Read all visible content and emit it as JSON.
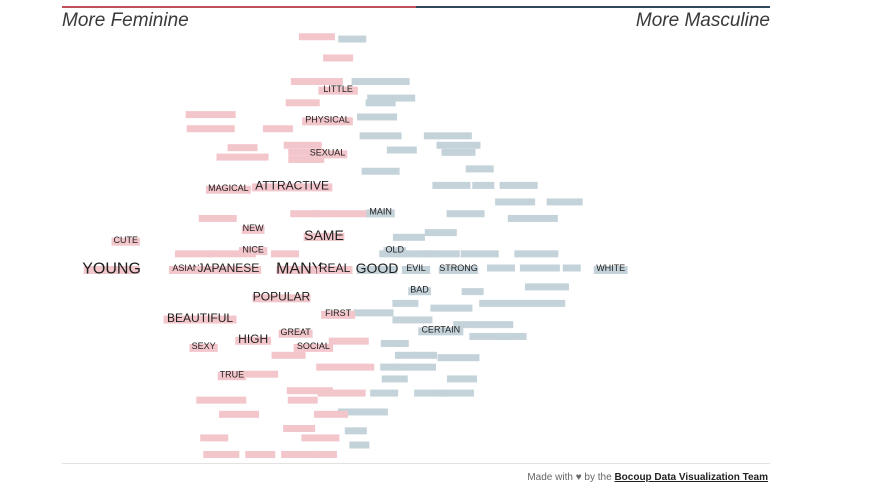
{
  "header": {
    "left_title": "More Feminine",
    "right_title": "More Masculine"
  },
  "footer": {
    "made_with": "Made with ♥ by the",
    "team": "Bocoup Data Visualization Team"
  },
  "colors": {
    "feminine": "#f2c6cb",
    "masculine": "#c4d3da",
    "accent_feminine": "#c0505a",
    "accent_masculine": "#2e4a5a",
    "text": "#1e1e1e"
  },
  "chart_data": {
    "type": "scatter",
    "description_axis_left": "More Feminine",
    "description_axis_right": "More Masculine",
    "labeled_words": [
      {
        "word": "YOUNG",
        "x": -0.86,
        "y": 0.0,
        "group": "feminine",
        "size": "xl"
      },
      {
        "word": "CUTE",
        "x": -0.82,
        "y": 0.12,
        "group": "feminine",
        "size": "s"
      },
      {
        "word": "ASIAN",
        "x": -0.65,
        "y": 0.0,
        "group": "feminine",
        "size": "s"
      },
      {
        "word": "JAPANESE",
        "x": -0.53,
        "y": 0.0,
        "group": "feminine",
        "size": "m"
      },
      {
        "word": "NICE",
        "x": -0.46,
        "y": 0.08,
        "group": "feminine",
        "size": "s"
      },
      {
        "word": "NEW",
        "x": -0.46,
        "y": 0.17,
        "group": "feminine",
        "size": "s"
      },
      {
        "word": "MAGICAL",
        "x": -0.53,
        "y": 0.34,
        "group": "feminine",
        "size": "s"
      },
      {
        "word": "ATTRACTIVE",
        "x": -0.35,
        "y": 0.35,
        "group": "feminine",
        "size": "m"
      },
      {
        "word": "SEXUAL",
        "x": -0.25,
        "y": 0.49,
        "group": "feminine",
        "size": "s"
      },
      {
        "word": "PHYSICAL",
        "x": -0.25,
        "y": 0.63,
        "group": "feminine",
        "size": "s"
      },
      {
        "word": "LITTLE",
        "x": -0.22,
        "y": 0.76,
        "group": "feminine",
        "size": "s"
      },
      {
        "word": "SAME",
        "x": -0.26,
        "y": 0.14,
        "group": "feminine",
        "size": "l"
      },
      {
        "word": "MANY",
        "x": -0.33,
        "y": 0.0,
        "group": "feminine",
        "size": "xl"
      },
      {
        "word": "REAL",
        "x": -0.23,
        "y": 0.0,
        "group": "feminine",
        "size": "m"
      },
      {
        "word": "POPULAR",
        "x": -0.38,
        "y": -0.12,
        "group": "feminine",
        "size": "m"
      },
      {
        "word": "FIRST",
        "x": -0.22,
        "y": -0.19,
        "group": "feminine",
        "size": "s"
      },
      {
        "word": "BEAUTIFUL",
        "x": -0.61,
        "y": -0.21,
        "group": "feminine",
        "size": "m"
      },
      {
        "word": "GREAT",
        "x": -0.34,
        "y": -0.27,
        "group": "feminine",
        "size": "s"
      },
      {
        "word": "HIGH",
        "x": -0.46,
        "y": -0.3,
        "group": "feminine",
        "size": "m"
      },
      {
        "word": "SEXY",
        "x": -0.6,
        "y": -0.33,
        "group": "feminine",
        "size": "s"
      },
      {
        "word": "SOCIAL",
        "x": -0.29,
        "y": -0.33,
        "group": "feminine",
        "size": "s"
      },
      {
        "word": "TRUE",
        "x": -0.52,
        "y": -0.45,
        "group": "feminine",
        "size": "s"
      },
      {
        "word": "GOOD",
        "x": -0.11,
        "y": 0.0,
        "group": "masculine",
        "size": "l"
      },
      {
        "word": "MAIN",
        "x": -0.1,
        "y": 0.24,
        "group": "masculine",
        "size": "s"
      },
      {
        "word": "OLD",
        "x": -0.06,
        "y": 0.08,
        "group": "masculine",
        "size": "s"
      },
      {
        "word": "EVIL",
        "x": 0.0,
        "y": 0.0,
        "group": "masculine",
        "size": "s"
      },
      {
        "word": "STRONG",
        "x": 0.12,
        "y": 0.0,
        "group": "masculine",
        "size": "s"
      },
      {
        "word": "BAD",
        "x": 0.01,
        "y": -0.09,
        "group": "masculine",
        "size": "s"
      },
      {
        "word": "CERTAIN",
        "x": 0.07,
        "y": -0.26,
        "group": "masculine",
        "size": "s"
      },
      {
        "word": "WHITE",
        "x": 0.55,
        "y": 0.0,
        "group": "masculine",
        "size": "s"
      }
    ],
    "unlabeled_words": [
      {
        "x": -0.28,
        "y": 0.98,
        "w": 36,
        "group": "feminine"
      },
      {
        "x": -0.18,
        "y": 0.97,
        "w": 28,
        "group": "masculine"
      },
      {
        "x": -0.22,
        "y": 0.89,
        "w": 30,
        "group": "feminine"
      },
      {
        "x": -0.28,
        "y": 0.79,
        "w": 52,
        "group": "feminine"
      },
      {
        "x": -0.1,
        "y": 0.79,
        "w": 58,
        "group": "masculine"
      },
      {
        "x": -0.07,
        "y": 0.72,
        "w": 48,
        "group": "masculine"
      },
      {
        "x": -0.32,
        "y": 0.7,
        "w": 34,
        "group": "feminine"
      },
      {
        "x": -0.1,
        "y": 0.7,
        "w": 30,
        "group": "masculine"
      },
      {
        "x": -0.58,
        "y": 0.65,
        "w": 50,
        "group": "feminine"
      },
      {
        "x": -0.11,
        "y": 0.64,
        "w": 40,
        "group": "masculine"
      },
      {
        "x": -0.58,
        "y": 0.59,
        "w": 48,
        "group": "feminine"
      },
      {
        "x": -0.39,
        "y": 0.59,
        "w": 30,
        "group": "feminine"
      },
      {
        "x": -0.1,
        "y": 0.56,
        "w": 42,
        "group": "masculine"
      },
      {
        "x": 0.09,
        "y": 0.56,
        "w": 48,
        "group": "masculine"
      },
      {
        "x": -0.32,
        "y": 0.52,
        "w": 38,
        "group": "feminine"
      },
      {
        "x": 0.12,
        "y": 0.52,
        "w": 44,
        "group": "masculine"
      },
      {
        "x": -0.49,
        "y": 0.51,
        "w": 30,
        "group": "feminine"
      },
      {
        "x": -0.04,
        "y": 0.5,
        "w": 30,
        "group": "masculine"
      },
      {
        "x": -0.31,
        "y": 0.49,
        "w": 36,
        "group": "feminine"
      },
      {
        "x": 0.12,
        "y": 0.49,
        "w": 34,
        "group": "masculine"
      },
      {
        "x": -0.49,
        "y": 0.47,
        "w": 52,
        "group": "feminine"
      },
      {
        "x": -0.31,
        "y": 0.46,
        "w": 36,
        "group": "feminine"
      },
      {
        "x": 0.18,
        "y": 0.42,
        "w": 28,
        "group": "masculine"
      },
      {
        "x": -0.1,
        "y": 0.41,
        "w": 38,
        "group": "masculine"
      },
      {
        "x": 0.1,
        "y": 0.35,
        "w": 38,
        "group": "masculine"
      },
      {
        "x": 0.19,
        "y": 0.35,
        "w": 22,
        "group": "masculine"
      },
      {
        "x": 0.29,
        "y": 0.35,
        "w": 38,
        "group": "masculine"
      },
      {
        "x": 0.28,
        "y": 0.28,
        "w": 40,
        "group": "masculine"
      },
      {
        "x": 0.42,
        "y": 0.28,
        "w": 36,
        "group": "masculine"
      },
      {
        "x": -0.31,
        "y": 0.23,
        "w": 32,
        "group": "feminine"
      },
      {
        "x": -0.26,
        "y": 0.23,
        "w": 24,
        "group": "feminine"
      },
      {
        "x": -0.18,
        "y": 0.23,
        "w": 36,
        "group": "feminine"
      },
      {
        "x": 0.14,
        "y": 0.23,
        "w": 38,
        "group": "masculine"
      },
      {
        "x": -0.56,
        "y": 0.21,
        "w": 38,
        "group": "feminine"
      },
      {
        "x": 0.33,
        "y": 0.21,
        "w": 50,
        "group": "masculine"
      },
      {
        "x": 0.07,
        "y": 0.15,
        "w": 32,
        "group": "masculine"
      },
      {
        "x": -0.02,
        "y": 0.13,
        "w": 32,
        "group": "masculine"
      },
      {
        "x": -0.63,
        "y": 0.06,
        "w": 36,
        "group": "feminine"
      },
      {
        "x": -0.52,
        "y": 0.06,
        "w": 48,
        "group": "feminine"
      },
      {
        "x": -0.37,
        "y": 0.06,
        "w": 28,
        "group": "feminine"
      },
      {
        "x": -0.07,
        "y": 0.06,
        "w": 24,
        "group": "masculine"
      },
      {
        "x": 0.0,
        "y": 0.06,
        "w": 38,
        "group": "masculine"
      },
      {
        "x": 0.07,
        "y": 0.06,
        "w": 38,
        "group": "masculine"
      },
      {
        "x": 0.18,
        "y": 0.06,
        "w": 38,
        "group": "masculine"
      },
      {
        "x": 0.34,
        "y": 0.06,
        "w": 44,
        "group": "masculine"
      },
      {
        "x": 0.24,
        "y": 0.0,
        "w": 28,
        "group": "masculine"
      },
      {
        "x": 0.35,
        "y": 0.0,
        "w": 40,
        "group": "masculine"
      },
      {
        "x": 0.44,
        "y": 0.0,
        "w": 18,
        "group": "masculine"
      },
      {
        "x": 0.37,
        "y": -0.08,
        "w": 44,
        "group": "masculine"
      },
      {
        "x": 0.16,
        "y": -0.1,
        "w": 22,
        "group": "masculine"
      },
      {
        "x": -0.03,
        "y": -0.15,
        "w": 26,
        "group": "masculine"
      },
      {
        "x": 0.1,
        "y": -0.17,
        "w": 42,
        "group": "masculine"
      },
      {
        "x": 0.3,
        "y": -0.15,
        "w": 86,
        "group": "masculine"
      },
      {
        "x": -0.12,
        "y": -0.19,
        "w": 40,
        "group": "masculine"
      },
      {
        "x": -0.01,
        "y": -0.22,
        "w": 40,
        "group": "masculine"
      },
      {
        "x": 0.19,
        "y": -0.24,
        "w": 60,
        "group": "masculine"
      },
      {
        "x": 0.21,
        "y": -0.29,
        "w": 42,
        "group": "masculine"
      },
      {
        "x": 0.27,
        "y": -0.29,
        "w": 30,
        "group": "masculine"
      },
      {
        "x": -0.19,
        "y": -0.31,
        "w": 40,
        "group": "feminine"
      },
      {
        "x": -0.06,
        "y": -0.32,
        "w": 28,
        "group": "masculine"
      },
      {
        "x": -0.36,
        "y": -0.37,
        "w": 34,
        "group": "feminine"
      },
      {
        "x": 0.0,
        "y": -0.37,
        "w": 42,
        "group": "masculine"
      },
      {
        "x": 0.12,
        "y": -0.38,
        "w": 42,
        "group": "masculine"
      },
      {
        "x": -0.2,
        "y": -0.42,
        "w": 58,
        "group": "feminine"
      },
      {
        "x": -0.07,
        "y": -0.42,
        "w": 22,
        "group": "masculine"
      },
      {
        "x": 0.0,
        "y": -0.42,
        "w": 40,
        "group": "masculine"
      },
      {
        "x": -0.46,
        "y": -0.45,
        "w": 50,
        "group": "feminine"
      },
      {
        "x": -0.06,
        "y": -0.47,
        "w": 26,
        "group": "masculine"
      },
      {
        "x": 0.13,
        "y": -0.47,
        "w": 30,
        "group": "masculine"
      },
      {
        "x": -0.3,
        "y": -0.52,
        "w": 46,
        "group": "feminine"
      },
      {
        "x": -0.21,
        "y": -0.53,
        "w": 48,
        "group": "feminine"
      },
      {
        "x": -0.09,
        "y": -0.53,
        "w": 28,
        "group": "masculine"
      },
      {
        "x": 0.04,
        "y": -0.53,
        "w": 32,
        "group": "masculine"
      },
      {
        "x": 0.11,
        "y": -0.53,
        "w": 38,
        "group": "masculine"
      },
      {
        "x": -0.55,
        "y": -0.56,
        "w": 50,
        "group": "feminine"
      },
      {
        "x": -0.32,
        "y": -0.56,
        "w": 30,
        "group": "feminine"
      },
      {
        "x": -0.15,
        "y": -0.61,
        "w": 50,
        "group": "masculine"
      },
      {
        "x": -0.5,
        "y": -0.62,
        "w": 40,
        "group": "feminine"
      },
      {
        "x": -0.24,
        "y": -0.62,
        "w": 34,
        "group": "feminine"
      },
      {
        "x": -0.33,
        "y": -0.68,
        "w": 32,
        "group": "feminine"
      },
      {
        "x": -0.17,
        "y": -0.69,
        "w": 22,
        "group": "masculine"
      },
      {
        "x": -0.57,
        "y": -0.72,
        "w": 28,
        "group": "feminine"
      },
      {
        "x": -0.27,
        "y": -0.72,
        "w": 38,
        "group": "feminine"
      },
      {
        "x": -0.16,
        "y": -0.75,
        "w": 20,
        "group": "masculine"
      },
      {
        "x": -0.55,
        "y": -0.79,
        "w": 36,
        "group": "feminine"
      },
      {
        "x": -0.44,
        "y": -0.79,
        "w": 30,
        "group": "feminine"
      },
      {
        "x": -0.33,
        "y": -0.79,
        "w": 36,
        "group": "feminine"
      },
      {
        "x": -0.26,
        "y": -0.79,
        "w": 26,
        "group": "feminine"
      }
    ]
  }
}
